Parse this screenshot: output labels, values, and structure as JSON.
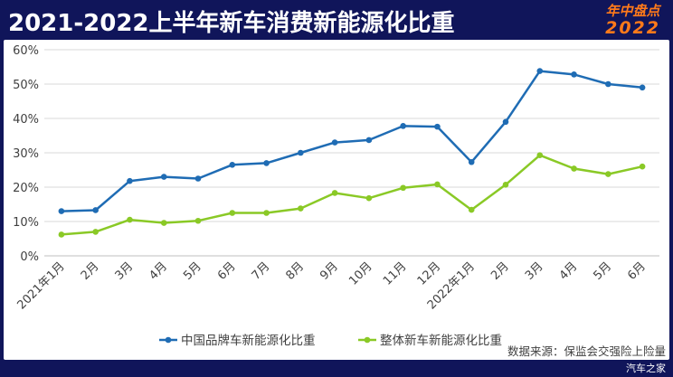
{
  "header": {
    "title": "2021-2022上半年新车消费新能源化比重",
    "brand_line1": "年中盘点",
    "brand_line2": "2022"
  },
  "footer": {
    "source": "数据来源：保监会交强险上险量",
    "watermark": "汽车之家"
  },
  "colors": {
    "background": "#10155a",
    "series1": "#1f6cb4",
    "series2": "#8ac926",
    "brand": "#ff7a1a"
  },
  "chart_data": {
    "type": "line",
    "title": "",
    "xlabel": "",
    "ylabel": "",
    "ylim": [
      0,
      60
    ],
    "yticks": [
      "0%",
      "10%",
      "20%",
      "30%",
      "40%",
      "50%",
      "60%"
    ],
    "grid": true,
    "legend_position": "bottom",
    "categories": [
      "2021年1月",
      "2月",
      "3月",
      "4月",
      "5月",
      "6月",
      "7月",
      "8月",
      "9月",
      "10月",
      "11月",
      "12月",
      "2022年1月",
      "2月",
      "3月",
      "4月",
      "5月",
      "6月"
    ],
    "series": [
      {
        "name": "中国品牌车新能源化比重",
        "color": "#1f6cb4",
        "values": [
          13.0,
          13.3,
          21.8,
          23.0,
          22.5,
          26.5,
          27.0,
          30.0,
          33.0,
          33.7,
          37.8,
          37.6,
          27.3,
          39.0,
          53.8,
          52.8,
          50.0,
          49.0
        ]
      },
      {
        "name": "整体新车新能源化比重",
        "color": "#8ac926",
        "values": [
          6.2,
          7.0,
          10.5,
          9.6,
          10.2,
          12.5,
          12.5,
          13.8,
          18.3,
          16.8,
          19.8,
          20.8,
          13.4,
          20.7,
          29.3,
          25.4,
          23.8,
          26.0
        ]
      }
    ]
  }
}
